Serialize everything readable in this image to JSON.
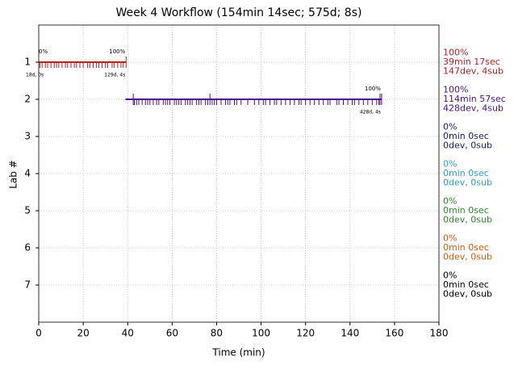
{
  "chart_data": {
    "type": "timeline",
    "title": "Week 4 Workflow (154min 14sec; 575d; 8s)",
    "x_label": "Time (min)",
    "y_label": "Lab #",
    "xlim": [
      0,
      180
    ],
    "xticks": [
      0,
      20,
      40,
      60,
      80,
      100,
      120,
      140,
      160,
      180
    ],
    "ylim": [
      8,
      0
    ],
    "yticks": [
      1,
      2,
      3,
      4,
      5,
      6,
      7
    ],
    "grid": true,
    "lanes": [
      {
        "lab": 1,
        "color": "#b22222",
        "start": 0,
        "end": 39.3,
        "events": [
          0.5,
          1.5,
          3,
          4,
          5.5,
          7,
          8,
          9,
          10.5,
          12,
          13,
          14.5,
          16,
          17,
          18.5,
          20,
          22,
          23,
          24.5,
          26,
          27,
          28.5,
          30,
          31,
          33,
          34,
          35.5,
          37,
          38
        ],
        "markers": [
          39.3
        ],
        "start_label": "0%",
        "start_sub": "18d, 0s",
        "end_label": "100%",
        "end_sub": "129d, 4s",
        "summary": [
          "100%",
          "39min 17sec",
          "147dev, 4sub"
        ]
      },
      {
        "lab": 2,
        "color": "#4b0f8c",
        "start": 39,
        "end": 154.2,
        "events": [
          43,
          44,
          45,
          46.5,
          48,
          49,
          50,
          51.5,
          53,
          54,
          56,
          57,
          58,
          59,
          61,
          62,
          63,
          64,
          66,
          67,
          68,
          69,
          71,
          72,
          73,
          75,
          76,
          78,
          79,
          80,
          82,
          84,
          85,
          86,
          88,
          89,
          91,
          94,
          97,
          99,
          101,
          102,
          104,
          106,
          107,
          109,
          111,
          113,
          115,
          117,
          118,
          120,
          122,
          124,
          126,
          128,
          130,
          131,
          134,
          135,
          137,
          139,
          141,
          142,
          144,
          146,
          148,
          150,
          152,
          153
        ],
        "markers": [
          42.5,
          77,
          153.5,
          154.2
        ],
        "end_label": "100%",
        "end_sub": "428d, 4s",
        "summary": [
          "100%",
          "114min 57sec",
          "428dev, 4sub"
        ]
      },
      {
        "lab": 3,
        "color": "#1a1a6e",
        "summary": [
          "0%",
          "0min 0sec",
          "0dev, 0sub"
        ]
      },
      {
        "lab": 4,
        "color": "#2a9fd8",
        "summary": [
          "0%",
          "0min 0sec",
          "0dev, 0sub"
        ]
      },
      {
        "lab": 5,
        "color": "#2e8b2e",
        "summary": [
          "0%",
          "0min 0sec",
          "0dev, 0sub"
        ]
      },
      {
        "lab": 6,
        "color": "#e05a0c",
        "summary": [
          "0%",
          "0min 0sec",
          "0dev, 0sub"
        ]
      },
      {
        "lab": 7,
        "color": "#000000",
        "summary": [
          "0%",
          "0min 0sec",
          "0dev, 0sub"
        ]
      }
    ]
  }
}
